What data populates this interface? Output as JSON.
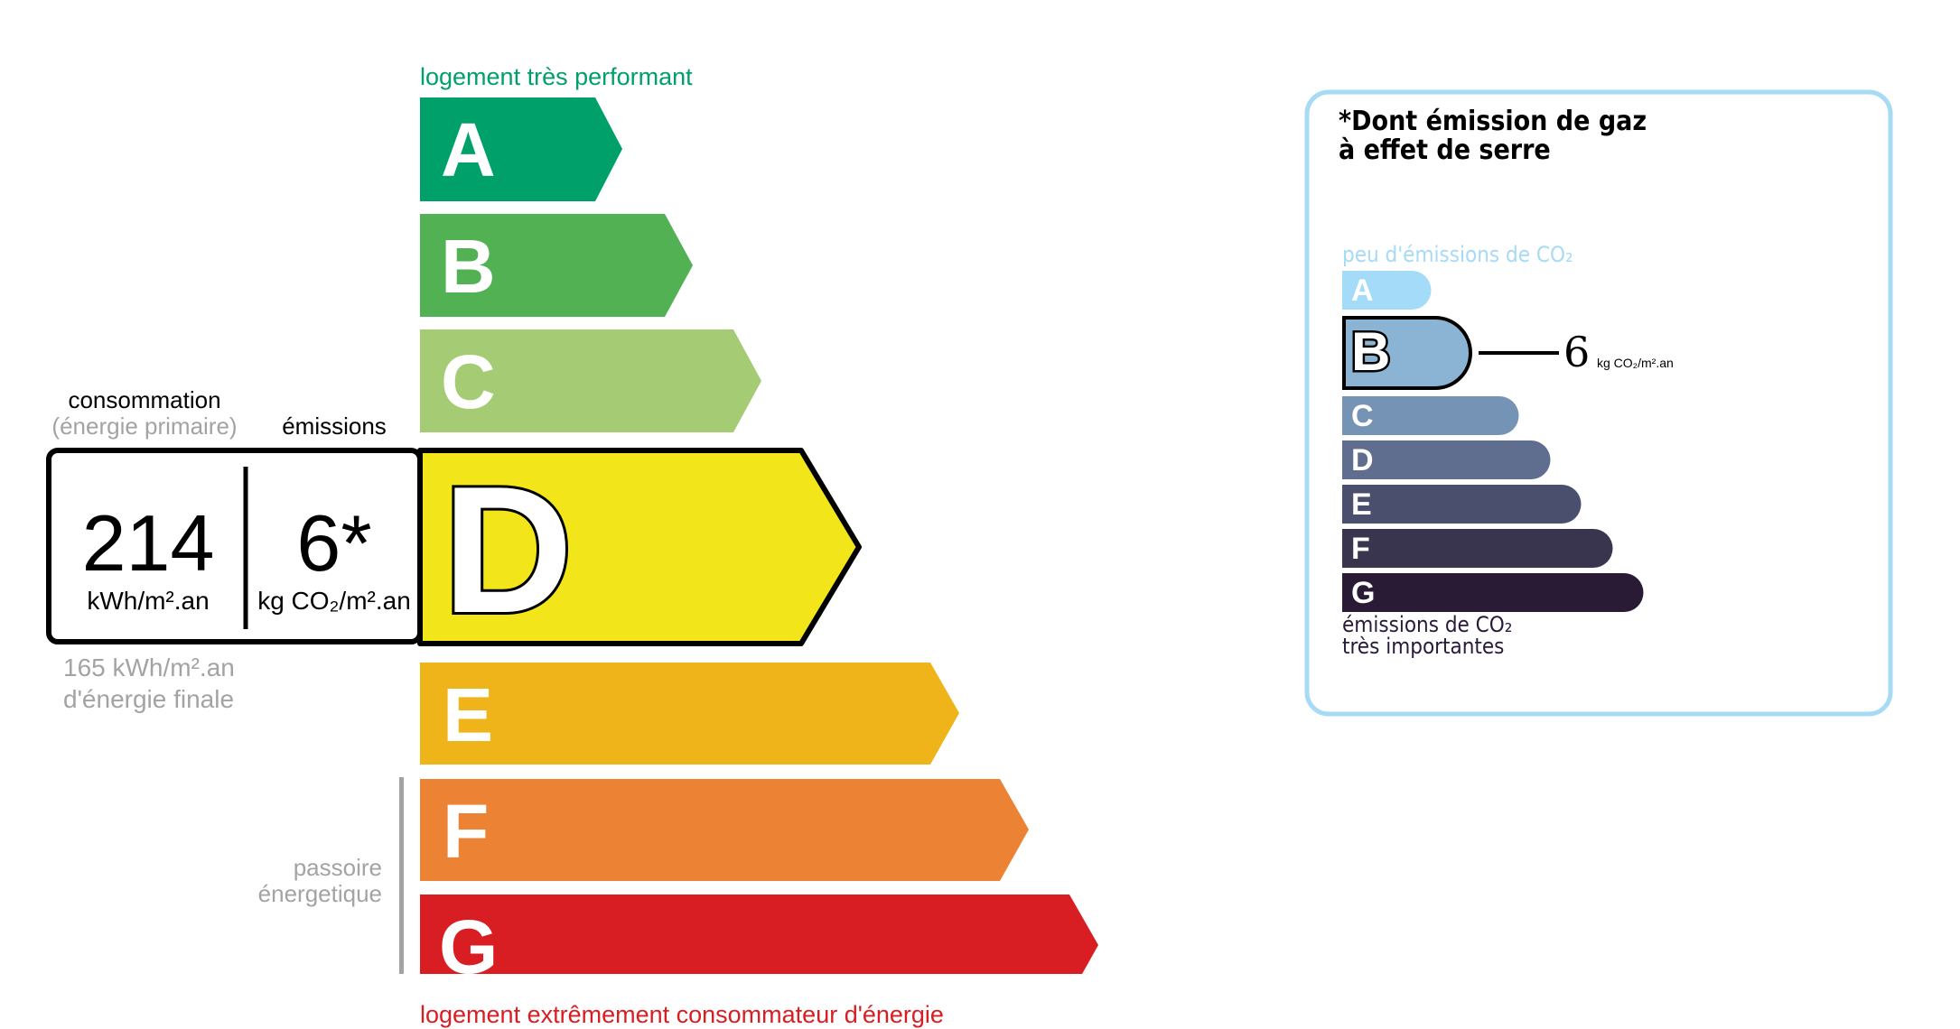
{
  "energy": {
    "top_label": "logement très performant",
    "bottom_label": "logement extrêmement consommateur d'énergie",
    "consommation_label": "consommation",
    "primaire_label": "(énergie primaire)",
    "emissions_label": "émissions",
    "value": "214",
    "value_unit": "kWh/m².an",
    "emission_value": "6*",
    "emission_unit": "kg CO₂/m².an",
    "final_value": "165 kWh/m².an",
    "final_label": "d'énergie finale",
    "passoire_line1": "passoire",
    "passoire_line2": "énergetique",
    "current_class": "D",
    "classes": [
      {
        "letter": "A",
        "color": "#00a06b"
      },
      {
        "letter": "B",
        "color": "#52b153"
      },
      {
        "letter": "C",
        "color": "#a5cc74"
      },
      {
        "letter": "D",
        "color": "#f2e51a"
      },
      {
        "letter": "E",
        "color": "#efb41a"
      },
      {
        "letter": "F",
        "color": "#eb8234"
      },
      {
        "letter": "G",
        "color": "#d81e22"
      }
    ],
    "top_label_color": "#00a06b",
    "bottom_label_color": "#d81e22"
  },
  "ges": {
    "title_line1": "*Dont émission de gaz",
    "title_line2": "à effet de serre",
    "top_label": "peu d'émissions de CO₂",
    "bottom_line1": "émissions de CO₂",
    "bottom_line2": "très importantes",
    "value": "6",
    "unit": "kg CO₂/m².an",
    "current_class": "B",
    "border_color": "#a6daf5",
    "classes": [
      {
        "letter": "A",
        "color": "#a4dbf8"
      },
      {
        "letter": "B",
        "color": "#8bb4d4"
      },
      {
        "letter": "C",
        "color": "#7593b4"
      },
      {
        "letter": "D",
        "color": "#5f6d8f"
      },
      {
        "letter": "E",
        "color": "#4b4f6e"
      },
      {
        "letter": "F",
        "color": "#39354f"
      },
      {
        "letter": "G",
        "color": "#291b36"
      }
    ]
  }
}
